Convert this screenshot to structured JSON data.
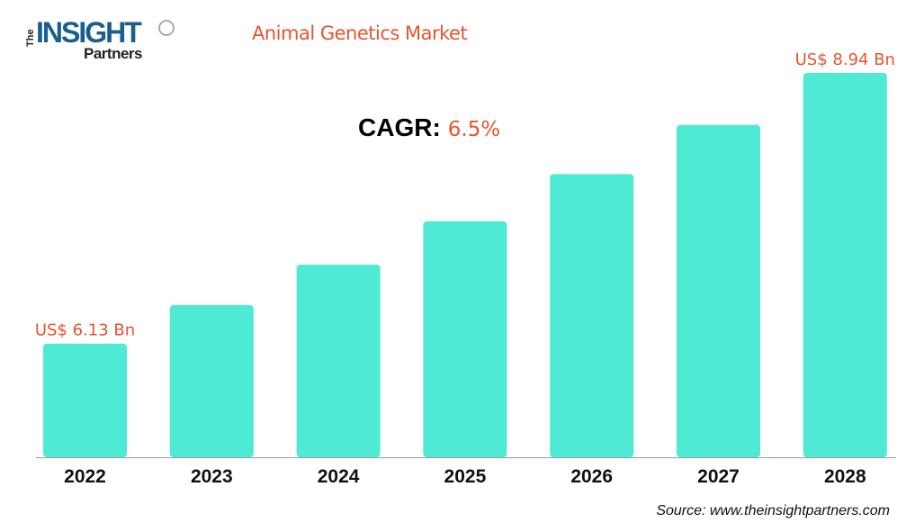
{
  "logo": {
    "line1": "The",
    "line2": "INSIGHT",
    "line3": "Partners"
  },
  "chart_data": {
    "type": "bar",
    "title": "Animal Genetics Market",
    "cagr_label": "CAGR:",
    "cagr_value": "6.5%",
    "categories": [
      "2022",
      "2023",
      "2024",
      "2025",
      "2026",
      "2027",
      "2028"
    ],
    "values": [
      6.13,
      6.53,
      6.95,
      7.4,
      7.89,
      8.4,
      8.94
    ],
    "data_labels": [
      "US$ 6.13 Bn",
      "",
      "",
      "",
      "",
      "",
      "US$ 8.94 Bn"
    ],
    "ylim": [
      4.95,
      8.94
    ],
    "xlabel": "",
    "ylabel": "",
    "grid": false,
    "bar_color": "#4deaD4",
    "label_color": "#e8542e"
  },
  "source": "Source: www.theinsightpartners.com"
}
